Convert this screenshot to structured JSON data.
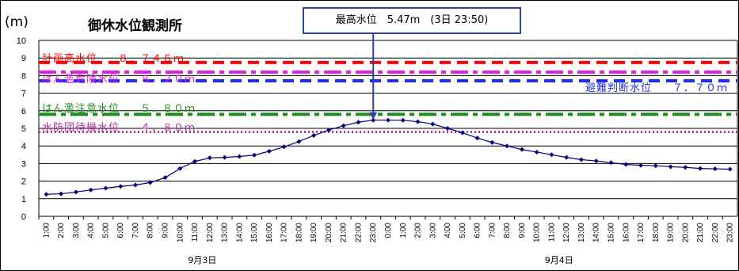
{
  "header": {
    "unit": "(m)",
    "station": "御休水位観測所",
    "max_annotation": "最高水位　5.47m　(3日 23:50)"
  },
  "levels": [
    {
      "key": "keikaku",
      "label": "計画高水位",
      "value": "８．７４６ｍ",
      "y": 8.746,
      "color": "#ff0000",
      "style": "dash"
    },
    {
      "key": "kiken",
      "label": "はん濫危険水位",
      "value": "８．２０ｍ",
      "y": 8.2,
      "color": "#e020e0",
      "style": "dashdot"
    },
    {
      "key": "hinan",
      "label": "避難判断水位",
      "value": "７．７０ｍ",
      "y": 7.7,
      "color": "#1f2fe0",
      "style": "dash"
    },
    {
      "key": "chui",
      "label": "はん濫注意水位",
      "value": "５．８０ｍ",
      "y": 5.8,
      "color": "#1e8f1e",
      "style": "dashdot"
    },
    {
      "key": "taiki",
      "label": "水防団待機水位",
      "value": "４．８０ｍ",
      "y": 4.8,
      "color": "#b4349e",
      "style": "dot"
    }
  ],
  "chart_data": {
    "type": "line",
    "title": "御休水位観測所",
    "ylabel": "(m)",
    "ylim": [
      0,
      10
    ],
    "yticks": [
      "0",
      "1",
      "2",
      "3",
      "4",
      "5",
      "6",
      "7",
      "8",
      "9",
      "10"
    ],
    "grid": true,
    "x": [
      "1:00",
      "2:00",
      "3:00",
      "4:00",
      "5:00",
      "6:00",
      "7:00",
      "8:00",
      "9:00",
      "10:00",
      "11:00",
      "12:00",
      "13:00",
      "14:00",
      "15:00",
      "16:00",
      "17:00",
      "18:00",
      "19:00",
      "20:00",
      "21:00",
      "22:00",
      "23:00",
      "0:00",
      "1:00",
      "2:00",
      "3:00",
      "4:00",
      "5:00",
      "6:00",
      "7:00",
      "8:00",
      "9:00",
      "10:00",
      "11:00",
      "12:00",
      "13:00",
      "14:00",
      "15:00",
      "16:00",
      "17:00",
      "18:00",
      "19:00",
      "20:00",
      "21:00",
      "22:00",
      "23:00"
    ],
    "day_labels": [
      {
        "label": "9月3日",
        "at": 11
      },
      {
        "label": "9月4日",
        "at": 35
      }
    ],
    "series": [
      {
        "color": "#000080",
        "values": [
          1.25,
          1.28,
          1.38,
          1.5,
          1.6,
          1.7,
          1.78,
          1.92,
          2.2,
          2.72,
          3.12,
          3.32,
          3.35,
          3.4,
          3.48,
          3.7,
          3.95,
          4.25,
          4.6,
          4.9,
          5.15,
          5.35,
          5.47,
          5.47,
          5.46,
          5.38,
          5.25,
          5.0,
          4.75,
          4.45,
          4.2,
          4.0,
          3.8,
          3.65,
          3.5,
          3.35,
          3.22,
          3.15,
          3.05,
          2.95,
          2.9,
          2.88,
          2.82,
          2.78,
          2.72,
          2.7,
          2.68
        ]
      }
    ]
  }
}
